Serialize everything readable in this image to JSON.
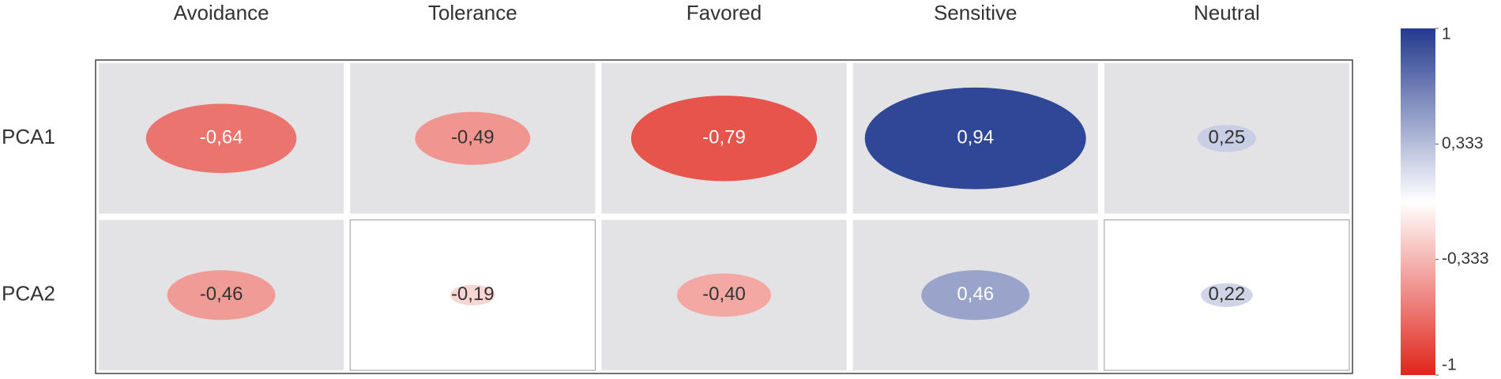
{
  "chart_data": {
    "type": "correlation",
    "x": [
      "Avoidance",
      "Tolerance",
      "Favored",
      "Sensitive",
      "Neutral"
    ],
    "y": [
      "PCA1",
      "PCA2"
    ],
    "values": [
      [
        -0.64,
        -0.49,
        -0.79,
        0.94,
        0.25
      ],
      [
        -0.46,
        -0.19,
        -0.4,
        0.46,
        0.22
      ]
    ],
    "value_labels": [
      [
        "-0,64",
        "-0,49",
        "-0,79",
        "0,94",
        "0,25"
      ],
      [
        "-0,46",
        "-0,19",
        "-0,40",
        "0,46",
        "0,22"
      ]
    ],
    "cell_shading": [
      [
        true,
        true,
        true,
        true,
        true
      ],
      [
        true,
        false,
        true,
        true,
        false
      ]
    ],
    "clim": [
      -1,
      1
    ],
    "cticks": [
      -1,
      {
        "value": -0.333,
        "label": "-0,333"
      },
      {
        "value": 0.333,
        "label": "0,333"
      },
      1
    ],
    "colors": [
      "#e0261c",
      "#ffffff",
      "#233a8f"
    ]
  }
}
